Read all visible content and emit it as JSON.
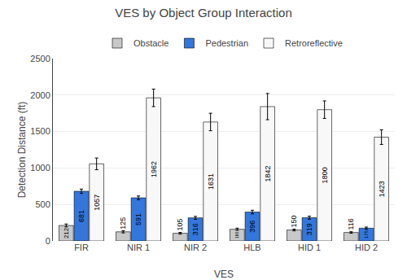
{
  "chart_data": {
    "type": "bar",
    "title": "VES by Object Group Interaction",
    "xlabel": "VES",
    "ylabel": "Detection Distance (ft)",
    "categories": [
      "FIR",
      "NIR 1",
      "NIR 2",
      "HLB",
      "HID 1",
      "HID 2"
    ],
    "series": [
      {
        "name": "Obstacle",
        "color": "#c8c8c8",
        "values": [
          212,
          125,
          105,
          160,
          150,
          116
        ],
        "errors": [
          20,
          15,
          12,
          15,
          12,
          10
        ]
      },
      {
        "name": "Pedestrian",
        "color": "#3377dd",
        "values": [
          681,
          591,
          316,
          396,
          319,
          175
        ],
        "errors": [
          30,
          25,
          20,
          25,
          20,
          15
        ]
      },
      {
        "name": "Retroreflective",
        "color": "#f8f8f8",
        "values": [
          1057,
          1962,
          1631,
          1842,
          1800,
          1423
        ],
        "errors": [
          80,
          120,
          120,
          180,
          120,
          100
        ]
      }
    ],
    "ylim": [
      0,
      2500
    ],
    "yticks": [
      0,
      500,
      1000,
      1500,
      2000,
      2500
    ],
    "grid": true,
    "legend": "top",
    "data_labels": true
  }
}
